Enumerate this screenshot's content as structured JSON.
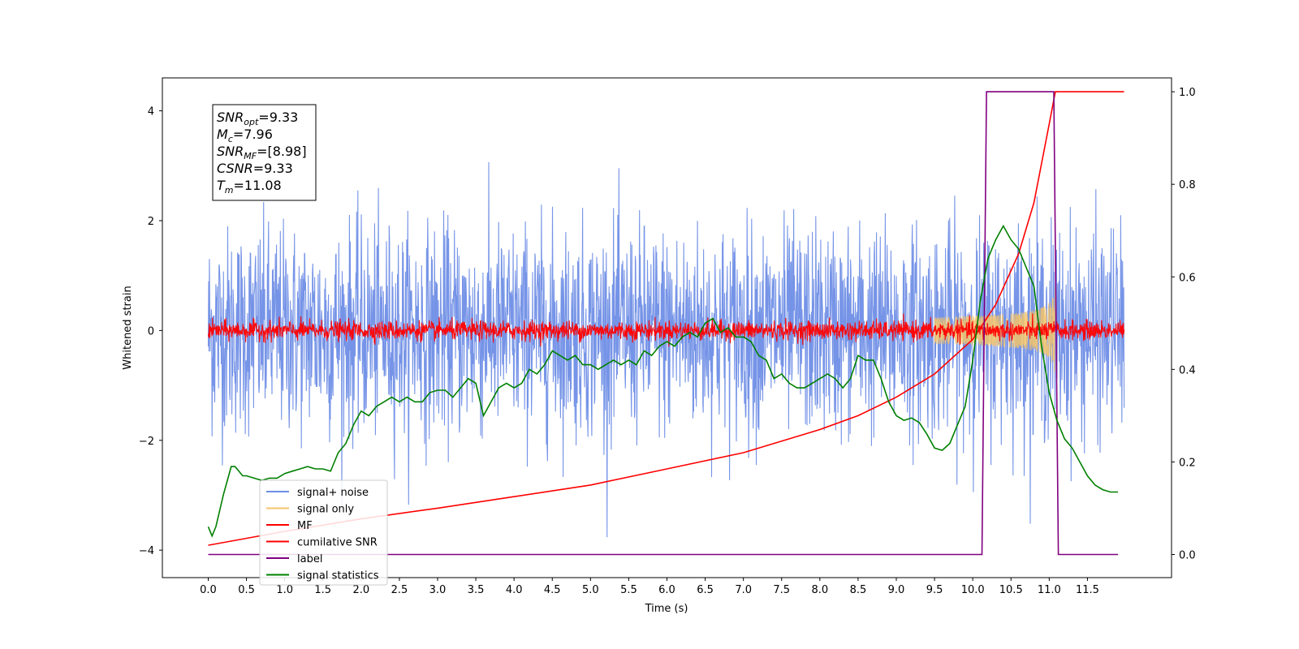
{
  "chart_data": {
    "type": "line",
    "xlabel": "Time (s)",
    "ylabel_left": "Whitened strain",
    "ylabel_right": "",
    "xlim": [
      -0.6,
      12.6
    ],
    "ylim_left": [
      -4.5,
      4.6
    ],
    "ylim_right": [
      -0.05,
      1.03
    ],
    "x_ticks": [
      "0.0",
      "0.5",
      "1.0",
      "1.5",
      "2.0",
      "2.5",
      "3.0",
      "3.5",
      "4.0",
      "4.5",
      "5.0",
      "5.5",
      "6.0",
      "6.5",
      "7.0",
      "7.5",
      "8.0",
      "8.5",
      "9.0",
      "9.5",
      "10.0",
      "10.5",
      "11.0",
      "11.5"
    ],
    "y_ticks_left": [
      "4",
      "2",
      "0",
      "−2",
      "−4"
    ],
    "y_ticks_right": [
      "1.0",
      "0.8",
      "0.6",
      "0.4",
      "0.2",
      "0.0"
    ],
    "legend_position": "lower left",
    "grid": false,
    "info_box": {
      "snr_opt": {
        "symbol": "SNR",
        "sub": "opt",
        "value": "=9.33"
      },
      "mc": {
        "symbol": "M",
        "sub": "c",
        "value": "=7.96"
      },
      "snr_mf": {
        "symbol": "SNR",
        "sub": "MF",
        "value": "=[8.98]"
      },
      "csnr": {
        "symbol": "CSNR",
        "sub": "",
        "value": "=9.33"
      },
      "tm": {
        "symbol": "T",
        "sub": "m",
        "value": "=11.08"
      }
    },
    "series": [
      {
        "name": "signal+ noise",
        "color": "#6f8ee6",
        "axis": "left",
        "style": "noise",
        "amplitude": 1.3,
        "x_range": [
          0,
          11.98
        ]
      },
      {
        "name": "signal only",
        "color": "#f5c46a",
        "axis": "left",
        "style": "chirp",
        "x_range": [
          9.5,
          11.08
        ],
        "max_amplitude": 0.8
      },
      {
        "name": "MF",
        "color": "#ff0000",
        "axis": "left",
        "style": "noise",
        "amplitude": 0.12,
        "x_range": [
          0,
          11.98
        ]
      },
      {
        "name": "cumilative SNR",
        "color": "#ff0000",
        "axis": "right",
        "x": [
          0.0,
          1.0,
          2.0,
          3.0,
          4.0,
          5.0,
          6.0,
          7.0,
          8.0,
          8.5,
          9.0,
          9.5,
          10.0,
          10.3,
          10.6,
          10.8,
          11.0,
          11.08,
          11.98
        ],
        "y": [
          0.02,
          0.05,
          0.077,
          0.1,
          0.125,
          0.15,
          0.185,
          0.22,
          0.27,
          0.3,
          0.34,
          0.39,
          0.465,
          0.54,
          0.65,
          0.76,
          0.93,
          1.0,
          1.0
        ]
      },
      {
        "name": "label",
        "color": "#800080",
        "axis": "right",
        "x": [
          0.0,
          10.12,
          10.18,
          11.06,
          11.12,
          11.9
        ],
        "y": [
          0.0,
          0.0,
          1.0,
          1.0,
          0.0,
          0.0
        ]
      },
      {
        "name": "signal statistics",
        "color": "#008000",
        "axis": "right",
        "x": [
          0.0,
          0.05,
          0.1,
          0.2,
          0.3,
          0.35,
          0.45,
          0.5,
          0.6,
          0.7,
          0.8,
          0.9,
          1.0,
          1.1,
          1.2,
          1.3,
          1.4,
          1.5,
          1.6,
          1.7,
          1.8,
          1.9,
          2.0,
          2.1,
          2.2,
          2.3,
          2.4,
          2.5,
          2.6,
          2.7,
          2.8,
          2.9,
          3.0,
          3.1,
          3.2,
          3.3,
          3.4,
          3.5,
          3.6,
          3.7,
          3.8,
          3.9,
          4.0,
          4.1,
          4.2,
          4.3,
          4.4,
          4.5,
          4.6,
          4.7,
          4.8,
          4.9,
          5.0,
          5.1,
          5.2,
          5.3,
          5.4,
          5.5,
          5.6,
          5.7,
          5.8,
          5.9,
          6.0,
          6.1,
          6.2,
          6.3,
          6.4,
          6.5,
          6.6,
          6.7,
          6.8,
          6.9,
          7.0,
          7.1,
          7.2,
          7.3,
          7.4,
          7.5,
          7.6,
          7.7,
          7.8,
          7.9,
          8.0,
          8.1,
          8.2,
          8.3,
          8.4,
          8.5,
          8.6,
          8.7,
          8.8,
          8.9,
          9.0,
          9.1,
          9.2,
          9.3,
          9.4,
          9.5,
          9.6,
          9.7,
          9.8,
          9.9,
          10.0,
          10.1,
          10.2,
          10.3,
          10.4,
          10.5,
          10.6,
          10.7,
          10.8,
          10.9,
          11.0,
          11.1,
          11.2,
          11.3,
          11.4,
          11.5,
          11.6,
          11.7,
          11.8,
          11.9
        ],
        "y": [
          0.06,
          0.04,
          0.06,
          0.13,
          0.19,
          0.19,
          0.17,
          0.17,
          0.165,
          0.16,
          0.165,
          0.165,
          0.175,
          0.18,
          0.185,
          0.19,
          0.185,
          0.185,
          0.18,
          0.22,
          0.24,
          0.28,
          0.31,
          0.3,
          0.32,
          0.33,
          0.34,
          0.33,
          0.34,
          0.33,
          0.33,
          0.35,
          0.355,
          0.355,
          0.34,
          0.36,
          0.38,
          0.37,
          0.3,
          0.33,
          0.36,
          0.37,
          0.36,
          0.37,
          0.4,
          0.39,
          0.41,
          0.44,
          0.43,
          0.42,
          0.43,
          0.41,
          0.41,
          0.4,
          0.41,
          0.42,
          0.41,
          0.42,
          0.41,
          0.44,
          0.43,
          0.45,
          0.46,
          0.45,
          0.47,
          0.48,
          0.47,
          0.5,
          0.51,
          0.48,
          0.49,
          0.47,
          0.47,
          0.46,
          0.43,
          0.42,
          0.38,
          0.39,
          0.37,
          0.36,
          0.36,
          0.37,
          0.38,
          0.39,
          0.38,
          0.36,
          0.38,
          0.43,
          0.42,
          0.42,
          0.38,
          0.33,
          0.3,
          0.29,
          0.295,
          0.285,
          0.26,
          0.23,
          0.225,
          0.24,
          0.28,
          0.32,
          0.42,
          0.55,
          0.64,
          0.68,
          0.71,
          0.68,
          0.66,
          0.62,
          0.58,
          0.45,
          0.35,
          0.29,
          0.25,
          0.23,
          0.2,
          0.17,
          0.15,
          0.14,
          0.135,
          0.135
        ]
      }
    ]
  }
}
